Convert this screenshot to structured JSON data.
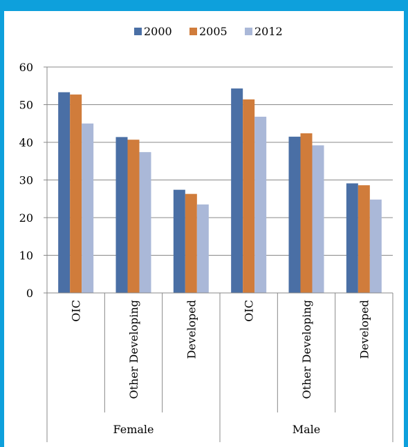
{
  "chart_data": {
    "type": "bar",
    "title": "",
    "xlabel": "",
    "ylabel": "",
    "ylim": [
      0,
      60
    ],
    "yticks": [
      0,
      10,
      20,
      30,
      40,
      50,
      60
    ],
    "grid": true,
    "legend_position": "top",
    "groups": [
      {
        "label": "Female",
        "categories": [
          "OIC",
          "Other Developing",
          "Developed"
        ]
      },
      {
        "label": "Male",
        "categories": [
          "OIC",
          "Other Developing",
          "Developed"
        ]
      }
    ],
    "series": [
      {
        "name": "2000",
        "color": "#4a6fa5",
        "values": [
          53.3,
          41.4,
          27.4,
          54.3,
          41.5,
          29.1
        ]
      },
      {
        "name": "2005",
        "color": "#d07c3b",
        "values": [
          52.7,
          40.7,
          26.3,
          51.4,
          42.4,
          28.6
        ]
      },
      {
        "name": "2012",
        "color": "#aab8d8",
        "values": [
          45.0,
          37.4,
          23.5,
          46.8,
          39.2,
          24.8
        ]
      }
    ]
  },
  "colors": {
    "frame_border": "#0ea0dc",
    "gridline": "#888888"
  }
}
